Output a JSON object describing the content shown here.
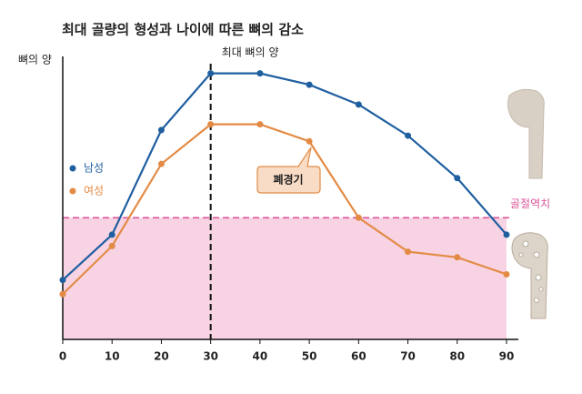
{
  "chart_data": {
    "type": "line",
    "title": "최대 골량의 형성과 나이에 따른 뼈의 감소",
    "y_label": "뼈의 양",
    "x": [
      0,
      10,
      20,
      30,
      40,
      50,
      60,
      70,
      80,
      90
    ],
    "series": [
      {
        "name": "남성",
        "color": "#1f5fa0",
        "values": [
          21,
          37,
          74,
          94,
          94,
          90,
          83,
          72,
          57,
          37
        ]
      },
      {
        "name": "여성",
        "color": "#e38b45",
        "values": [
          16,
          33,
          62,
          76,
          76,
          70,
          43,
          31,
          29,
          23
        ]
      }
    ],
    "xlim": [
      0,
      90
    ],
    "xticks": [
      0,
      10,
      20,
      30,
      40,
      50,
      60,
      70,
      80,
      90
    ],
    "ylim": [
      0,
      100
    ],
    "peak_x": 30,
    "peak_label": "최대 뼈의 양",
    "threshold": 43,
    "threshold_label": "골절역치",
    "threshold_color": "#d9559a",
    "zone_color": "#f8d3e3",
    "menopause_label": "폐경기",
    "legend": "left"
  }
}
